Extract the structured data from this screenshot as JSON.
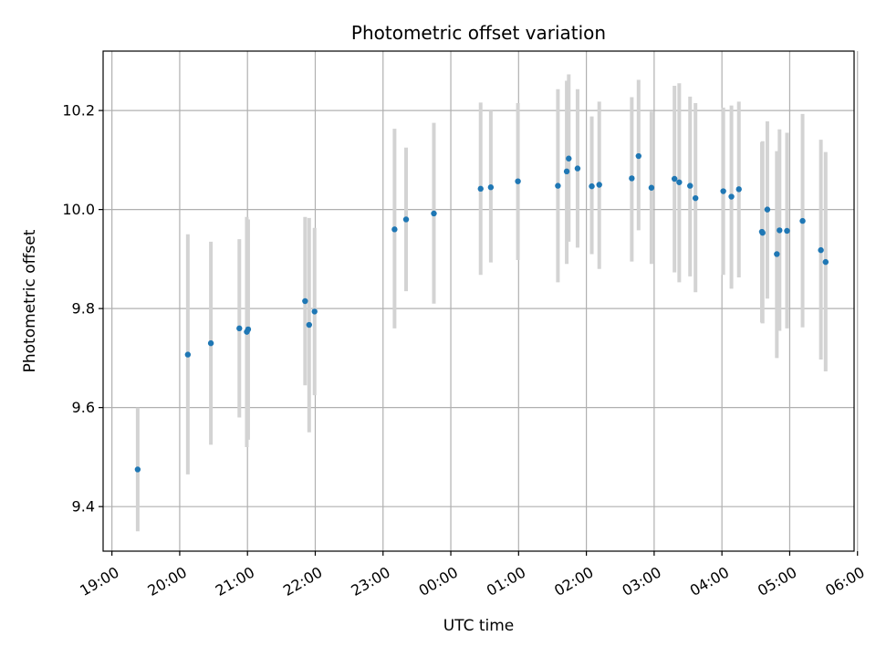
{
  "chart_data": {
    "type": "scatter",
    "title": "Photometric offset variation",
    "xlabel": "UTC time",
    "ylabel": "Photometric offset",
    "x_unit": "hours since 19:00 UTC",
    "xlim": [
      -0.13,
      10.95
    ],
    "ylim": [
      9.31,
      10.32
    ],
    "xticks": [
      0,
      1,
      2,
      3,
      4,
      5,
      6,
      7,
      8,
      9,
      10,
      11
    ],
    "xtick_labels": [
      "19:00",
      "20:00",
      "21:00",
      "22:00",
      "23:00",
      "00:00",
      "01:00",
      "02:00",
      "03:00",
      "04:00",
      "05:00",
      "06:00"
    ],
    "yticks": [
      9.4,
      9.6,
      9.8,
      10.0,
      10.2
    ],
    "ytick_labels": [
      "9.4",
      "9.6",
      "9.8",
      "10.0",
      "10.2"
    ],
    "grid": true,
    "marker_color": "#1f77b4",
    "errorbar_color": "#d3d3d3",
    "series": [
      {
        "name": "",
        "points": [
          {
            "x": 0.38,
            "y": 9.475,
            "ylow": 9.35,
            "yhigh": 9.6
          },
          {
            "x": 1.12,
            "y": 9.707,
            "ylow": 9.465,
            "yhigh": 9.95
          },
          {
            "x": 1.46,
            "y": 9.73,
            "ylow": 9.525,
            "yhigh": 9.935
          },
          {
            "x": 1.88,
            "y": 9.76,
            "ylow": 9.58,
            "yhigh": 9.94
          },
          {
            "x": 1.99,
            "y": 9.753,
            "ylow": 9.52,
            "yhigh": 9.985
          },
          {
            "x": 2.01,
            "y": 9.758,
            "ylow": 9.535,
            "yhigh": 9.98
          },
          {
            "x": 2.85,
            "y": 9.815,
            "ylow": 9.645,
            "yhigh": 9.985
          },
          {
            "x": 2.91,
            "y": 9.767,
            "ylow": 9.55,
            "yhigh": 9.983
          },
          {
            "x": 2.99,
            "y": 9.794,
            "ylow": 9.625,
            "yhigh": 9.963
          },
          {
            "x": 4.17,
            "y": 9.96,
            "ylow": 9.76,
            "yhigh": 10.163
          },
          {
            "x": 4.34,
            "y": 9.98,
            "ylow": 9.835,
            "yhigh": 10.125
          },
          {
            "x": 4.75,
            "y": 9.992,
            "ylow": 9.81,
            "yhigh": 10.175
          },
          {
            "x": 5.44,
            "y": 10.042,
            "ylow": 9.868,
            "yhigh": 10.216
          },
          {
            "x": 5.59,
            "y": 10.045,
            "ylow": 9.893,
            "yhigh": 10.2
          },
          {
            "x": 5.99,
            "y": 10.057,
            "ylow": 9.898,
            "yhigh": 10.215
          },
          {
            "x": 6.58,
            "y": 10.048,
            "ylow": 9.853,
            "yhigh": 10.243
          },
          {
            "x": 6.71,
            "y": 10.077,
            "ylow": 9.89,
            "yhigh": 10.26
          },
          {
            "x": 6.74,
            "y": 10.103,
            "ylow": 9.935,
            "yhigh": 10.273
          },
          {
            "x": 6.87,
            "y": 10.083,
            "ylow": 9.923,
            "yhigh": 10.243
          },
          {
            "x": 7.08,
            "y": 10.047,
            "ylow": 9.91,
            "yhigh": 10.188
          },
          {
            "x": 7.19,
            "y": 10.05,
            "ylow": 9.88,
            "yhigh": 10.218
          },
          {
            "x": 7.67,
            "y": 10.063,
            "ylow": 9.895,
            "yhigh": 10.227
          },
          {
            "x": 7.77,
            "y": 10.108,
            "ylow": 9.958,
            "yhigh": 10.262
          },
          {
            "x": 7.96,
            "y": 10.044,
            "ylow": 9.89,
            "yhigh": 10.198
          },
          {
            "x": 8.3,
            "y": 10.062,
            "ylow": 9.873,
            "yhigh": 10.25
          },
          {
            "x": 8.37,
            "y": 10.055,
            "ylow": 9.853,
            "yhigh": 10.255
          },
          {
            "x": 8.53,
            "y": 10.048,
            "ylow": 9.865,
            "yhigh": 10.228
          },
          {
            "x": 8.61,
            "y": 10.023,
            "ylow": 9.833,
            "yhigh": 10.215
          },
          {
            "x": 9.02,
            "y": 10.037,
            "ylow": 9.868,
            "yhigh": 10.206
          },
          {
            "x": 9.14,
            "y": 10.026,
            "ylow": 9.84,
            "yhigh": 10.21
          },
          {
            "x": 9.25,
            "y": 10.041,
            "ylow": 9.863,
            "yhigh": 10.218
          },
          {
            "x": 9.59,
            "y": 9.955,
            "ylow": 9.772,
            "yhigh": 10.136
          },
          {
            "x": 9.6,
            "y": 9.953,
            "ylow": 9.77,
            "yhigh": 10.138
          },
          {
            "x": 9.67,
            "y": 10.0,
            "ylow": 9.82,
            "yhigh": 10.178
          },
          {
            "x": 9.81,
            "y": 9.91,
            "ylow": 9.7,
            "yhigh": 10.118
          },
          {
            "x": 9.85,
            "y": 9.958,
            "ylow": 9.755,
            "yhigh": 10.162
          },
          {
            "x": 9.96,
            "y": 9.957,
            "ylow": 9.76,
            "yhigh": 10.155
          },
          {
            "x": 10.19,
            "y": 9.977,
            "ylow": 9.762,
            "yhigh": 10.193
          },
          {
            "x": 10.46,
            "y": 9.918,
            "ylow": 9.697,
            "yhigh": 10.141
          },
          {
            "x": 10.53,
            "y": 9.894,
            "ylow": 9.673,
            "yhigh": 10.116
          }
        ]
      }
    ]
  }
}
